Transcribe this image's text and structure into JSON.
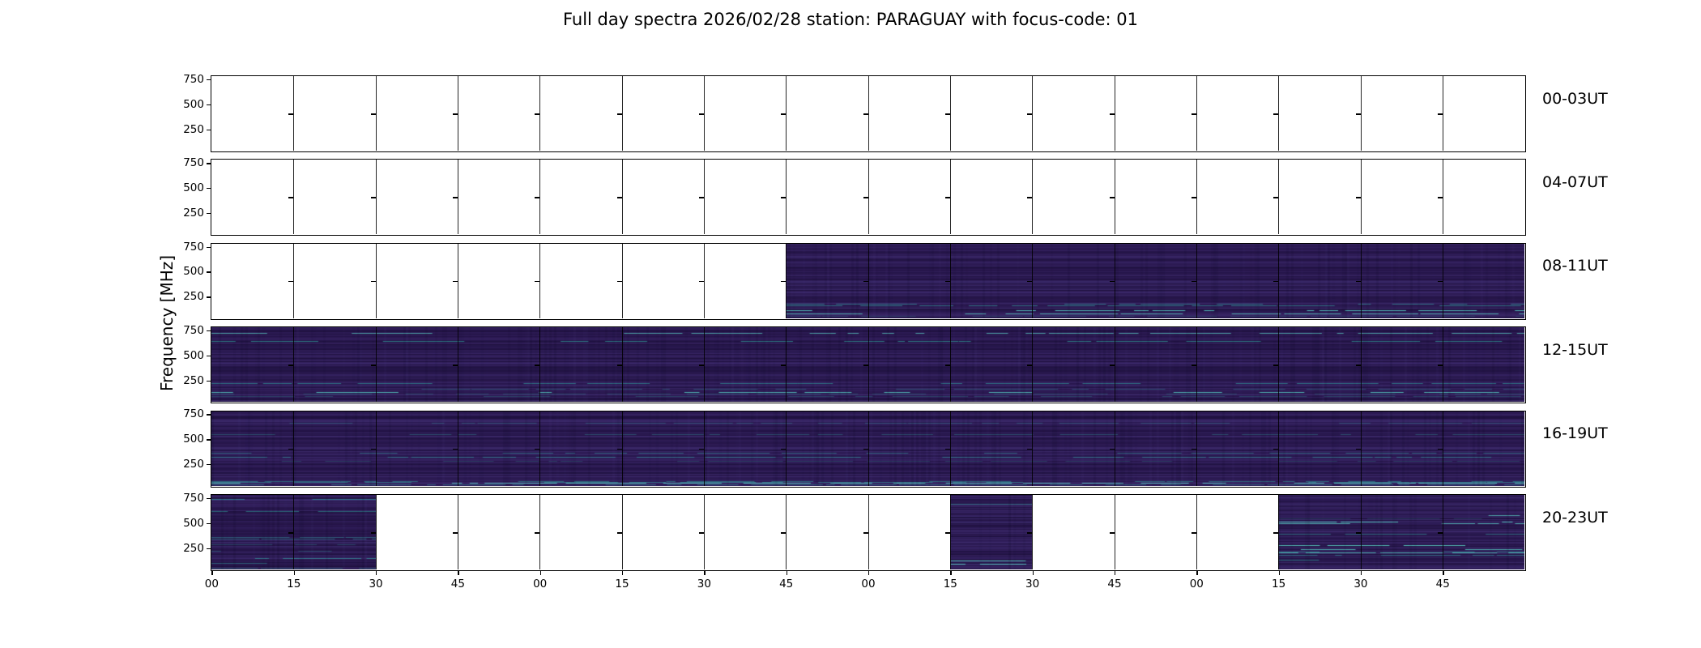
{
  "chart_data": {
    "type": "heatmap",
    "subtype": "spectrogram-montage",
    "title": "Full day spectra 2026/02/28 station: PARAGUAY with focus-code: 01",
    "date": "2026/02/28",
    "station": "PARAGUAY",
    "focus_code": "01",
    "ylabel": "Frequency [MHz]",
    "yticks": [
      750,
      500,
      250
    ],
    "xticks": [
      "00",
      "15",
      "30",
      "45",
      "00",
      "15",
      "30",
      "45",
      "00",
      "15",
      "30",
      "45",
      "00",
      "15",
      "30",
      "45"
    ],
    "segments_per_row": 16,
    "segment_minutes": 15,
    "rows": [
      {
        "label": "00-03UT",
        "data_segments": []
      },
      {
        "label": "04-07UT",
        "data_segments": []
      },
      {
        "label": "08-11UT",
        "data_segments": [
          7,
          8,
          9,
          10,
          11,
          12,
          13,
          14,
          15
        ]
      },
      {
        "label": "12-15UT",
        "data_segments": [
          0,
          1,
          2,
          3,
          4,
          5,
          6,
          7,
          8,
          9,
          10,
          11,
          12,
          13,
          14,
          15
        ]
      },
      {
        "label": "16-19UT",
        "data_segments": [
          0,
          1,
          2,
          3,
          4,
          5,
          6,
          7,
          8,
          9,
          10,
          11,
          12,
          13,
          14,
          15
        ]
      },
      {
        "label": "20-23UT",
        "data_segments": [
          0,
          1,
          9,
          13,
          14,
          15
        ]
      }
    ],
    "colors": {
      "axes": "#000000",
      "empty_segment": "#ffffff",
      "spectrogram_base": "#2c1a53",
      "spectrogram_highlight": "#46c8b8"
    },
    "legend": "none",
    "grid": "segment-boundaries"
  }
}
